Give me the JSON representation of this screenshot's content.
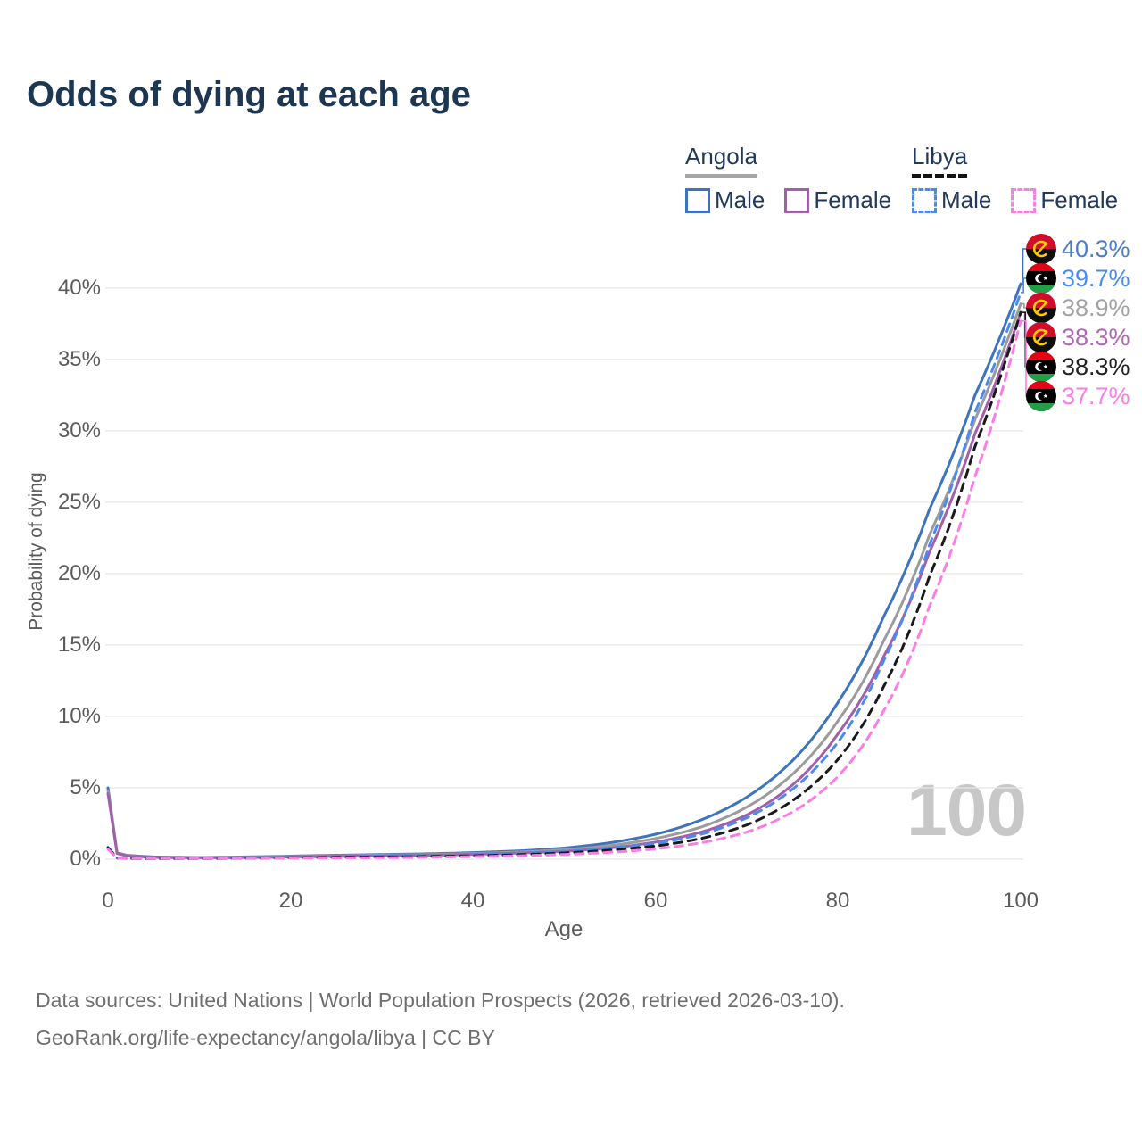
{
  "title": "Odds of dying at each age",
  "legend": {
    "groups": [
      {
        "key": "angola",
        "title": "Angola",
        "underline": "solid",
        "items": [
          {
            "label": "Male",
            "color": "#3e74bd",
            "dash": false
          },
          {
            "label": "Female",
            "color": "#a160aa",
            "dash": false
          }
        ]
      },
      {
        "key": "libya",
        "title": "Libya",
        "underline": "dashed",
        "items": [
          {
            "label": "Male",
            "color": "#4b8bef",
            "dash": true
          },
          {
            "label": "Female",
            "color": "#fb7de4",
            "dash": true
          }
        ]
      }
    ]
  },
  "y_axis": {
    "label": "Probability of dying",
    "ticks": [
      "40%",
      "35%",
      "30%",
      "25%",
      "20%",
      "15%",
      "10%",
      "5%",
      "0%"
    ]
  },
  "x_axis": {
    "label": "Age",
    "ticks": [
      "0",
      "20",
      "40",
      "60",
      "80",
      "100"
    ]
  },
  "watermark": "100",
  "end_labels": [
    {
      "series_key": "angola_male",
      "flag": "angola",
      "value": "40.3%",
      "color": "#4f7dc3"
    },
    {
      "series_key": "libya_male",
      "flag": "libya",
      "value": "39.7%",
      "color": "#4b8bef"
    },
    {
      "series_key": "angola_both",
      "flag": "angola",
      "value": "38.9%",
      "color": "#a3a3a3"
    },
    {
      "series_key": "angola_female",
      "flag": "angola",
      "value": "38.3%",
      "color": "#ad68b5"
    },
    {
      "series_key": "libya_both",
      "flag": "libya",
      "value": "38.3%",
      "color": "#222222"
    },
    {
      "series_key": "libya_female",
      "flag": "libya",
      "value": "37.7%",
      "color": "#fb7de4"
    }
  ],
  "footer": {
    "line1": "Data sources: United Nations | World Population Prospects (2026, retrieved 2026-03-10).",
    "line2": "GeoRank.org/life-expectancy/angola/libya | CC BY"
  },
  "chart_data": {
    "type": "line",
    "title": "Odds of dying at each age",
    "xlabel": "Age",
    "ylabel": "Probability of dying",
    "xlim": [
      0,
      100
    ],
    "ylim_pct": [
      0,
      42
    ],
    "grid": "horizontal",
    "legend_position": "top-right",
    "ages": [
      0,
      1,
      2,
      5,
      10,
      15,
      20,
      25,
      30,
      35,
      40,
      45,
      50,
      55,
      60,
      65,
      70,
      75,
      80,
      85,
      90,
      95,
      100
    ],
    "series": [
      {
        "key": "angola_male",
        "name": "Angola Male",
        "country": "Angola",
        "sex": "Male",
        "style": "solid",
        "color": "#3e74bd",
        "end_value_pct": 40.3,
        "values_pct": [
          5.0,
          0.45,
          0.28,
          0.16,
          0.12,
          0.16,
          0.22,
          0.28,
          0.33,
          0.38,
          0.46,
          0.58,
          0.78,
          1.15,
          1.75,
          2.75,
          4.35,
          6.9,
          11.0,
          17.0,
          24.5,
          32.5,
          40.3
        ]
      },
      {
        "key": "angola_both",
        "name": "Angola Both sexes",
        "country": "Angola",
        "sex": "Both",
        "style": "solid",
        "color": "#9b9b9b",
        "end_value_pct": 38.9,
        "values_pct": [
          4.8,
          0.42,
          0.26,
          0.14,
          0.11,
          0.14,
          0.19,
          0.24,
          0.29,
          0.33,
          0.4,
          0.5,
          0.66,
          0.95,
          1.45,
          2.25,
          3.65,
          5.95,
          9.7,
          15.3,
          22.7,
          30.8,
          38.9
        ]
      },
      {
        "key": "angola_female",
        "name": "Angola Female",
        "country": "Angola",
        "sex": "Female",
        "style": "solid",
        "color": "#a160aa",
        "end_value_pct": 38.3,
        "values_pct": [
          4.6,
          0.4,
          0.24,
          0.13,
          0.1,
          0.12,
          0.16,
          0.2,
          0.24,
          0.28,
          0.34,
          0.43,
          0.55,
          0.78,
          1.2,
          1.9,
          3.1,
          5.2,
          8.8,
          14.2,
          21.5,
          29.8,
          38.3
        ]
      },
      {
        "key": "libya_male",
        "name": "Libya Male",
        "country": "Libya",
        "sex": "Male",
        "style": "dashed",
        "color": "#4b8bef",
        "end_value_pct": 39.7,
        "values_pct": [
          0.85,
          0.09,
          0.06,
          0.05,
          0.05,
          0.09,
          0.13,
          0.17,
          0.2,
          0.24,
          0.3,
          0.4,
          0.55,
          0.78,
          1.1,
          1.75,
          2.9,
          4.9,
          8.2,
          13.9,
          22.0,
          31.3,
          39.7
        ]
      },
      {
        "key": "libya_both",
        "name": "Libya Both sexes",
        "country": "Libya",
        "sex": "Both",
        "style": "dashed",
        "color": "#1a1a1a",
        "end_value_pct": 38.3,
        "values_pct": [
          0.78,
          0.08,
          0.05,
          0.04,
          0.04,
          0.07,
          0.1,
          0.13,
          0.16,
          0.19,
          0.24,
          0.32,
          0.44,
          0.63,
          0.92,
          1.45,
          2.4,
          4.1,
          7.0,
          12.1,
          19.8,
          28.9,
          38.3
        ]
      },
      {
        "key": "libya_female",
        "name": "Libya Female",
        "country": "Libya",
        "sex": "Female",
        "style": "dashed",
        "color": "#fb7de4",
        "end_value_pct": 37.7,
        "values_pct": [
          0.7,
          0.07,
          0.05,
          0.04,
          0.04,
          0.05,
          0.07,
          0.09,
          0.11,
          0.14,
          0.18,
          0.24,
          0.33,
          0.48,
          0.72,
          1.15,
          1.9,
          3.3,
          5.8,
          10.4,
          17.7,
          26.8,
          37.7
        ]
      }
    ]
  }
}
